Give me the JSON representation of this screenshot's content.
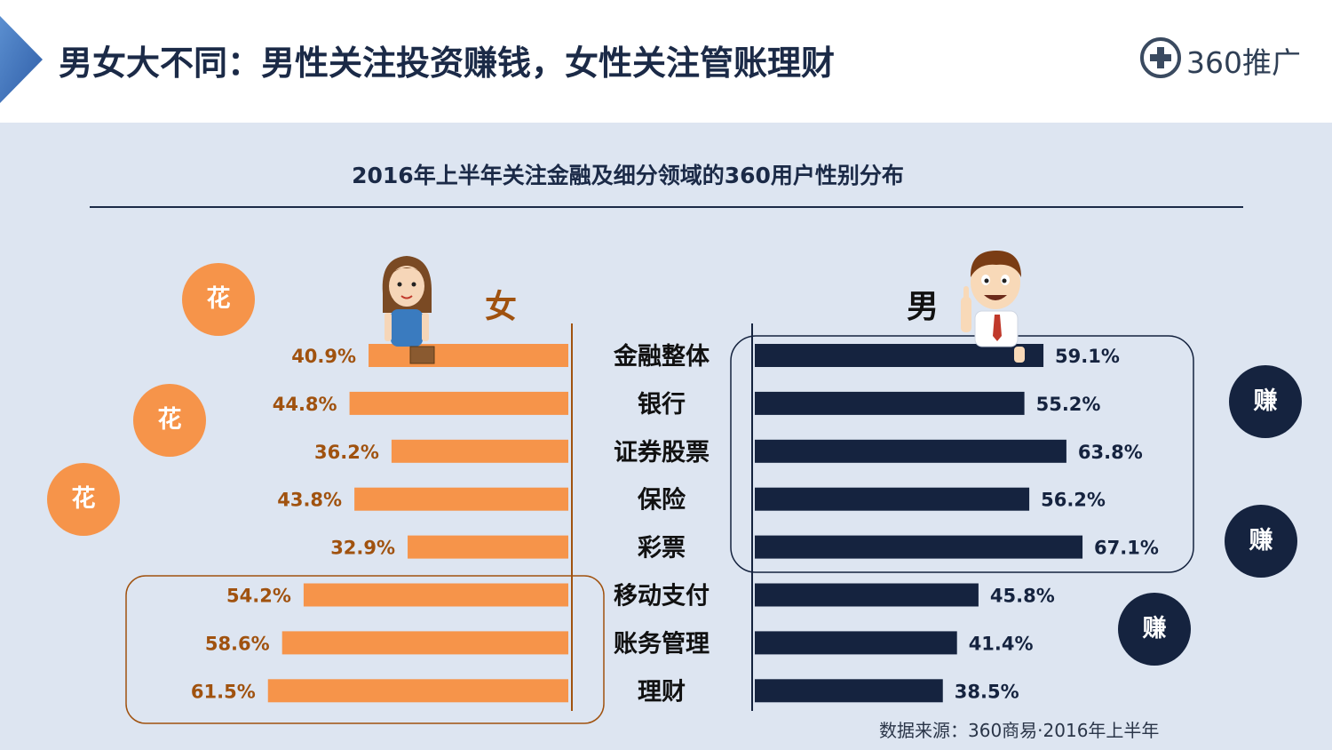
{
  "header": {
    "title": "男女大不同：男性关注投资赚钱，女性关注管账理财",
    "logo_text": "360推广",
    "logo_icon": "plus-circle-icon"
  },
  "badges": {
    "spend_label": "花",
    "earn_label": "赚"
  },
  "colors": {
    "female": "#f6944a",
    "male": "#15233f",
    "female_text": "#a0520f",
    "male_text": "#15233f"
  },
  "chart_data": {
    "type": "bar",
    "title": "2016年上半年关注金融及细分领域的360用户性别分布",
    "categories": [
      "金融整体",
      "银行",
      "证券股票",
      "保险",
      "彩票",
      "移动支付",
      "账务管理",
      "理财"
    ],
    "series": [
      {
        "name": "女",
        "values": [
          40.9,
          44.8,
          36.2,
          43.8,
          32.9,
          54.2,
          58.6,
          61.5
        ]
      },
      {
        "name": "男",
        "values": [
          59.1,
          55.2,
          63.8,
          56.2,
          67.1,
          45.8,
          41.4,
          38.5
        ]
      }
    ],
    "unit": "%",
    "orientation": "horizontal-butterfly",
    "source": "数据来源：360商易·2016年上半年"
  }
}
